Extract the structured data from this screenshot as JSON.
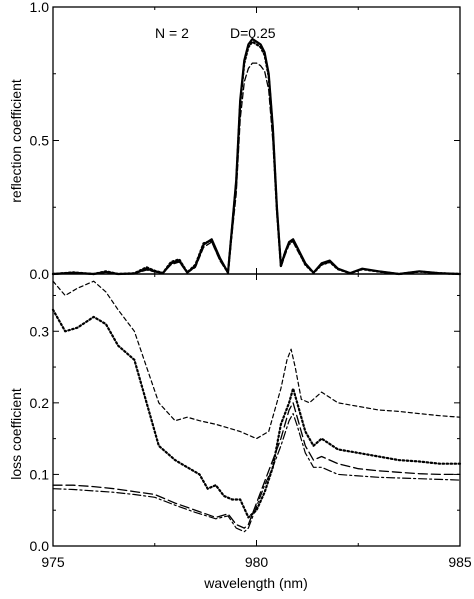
{
  "chart_data": [
    {
      "type": "line",
      "panel": "top",
      "ylabel": "reflection coefficient",
      "xlim": [
        975,
        985
      ],
      "ylim": [
        0,
        1
      ],
      "yticks": [
        0.0,
        0.5,
        1.0
      ],
      "ytick_labels": [
        "0.0",
        "0.5",
        "1.0"
      ],
      "grid": false,
      "annotations": [
        "N = 2",
        "D=0.25"
      ],
      "series": [
        {
          "style": "solid",
          "x": [
            975,
            975.5,
            976,
            976.3,
            976.6,
            977,
            977.3,
            977.5,
            977.7,
            977.9,
            978.1,
            978.3,
            978.5,
            978.7,
            978.9,
            979.1,
            979.3,
            979.5,
            979.6,
            979.7,
            979.8,
            979.9,
            980,
            980.1,
            980.2,
            980.3,
            980.4,
            980.5,
            980.6,
            980.7,
            980.8,
            980.9,
            981,
            981.2,
            981.4,
            981.6,
            981.8,
            982,
            982.3,
            982.6,
            983,
            983.5,
            984,
            984.5,
            985
          ],
          "y": [
            0.0,
            0.005,
            0.0,
            0.008,
            0.0,
            0.002,
            0.02,
            0.01,
            0.003,
            0.04,
            0.05,
            0.005,
            0.03,
            0.11,
            0.13,
            0.06,
            0.005,
            0.35,
            0.65,
            0.8,
            0.86,
            0.88,
            0.87,
            0.86,
            0.83,
            0.75,
            0.55,
            0.25,
            0.03,
            0.08,
            0.12,
            0.13,
            0.1,
            0.04,
            0.005,
            0.04,
            0.05,
            0.02,
            0.003,
            0.02,
            0.01,
            0.0,
            0.01,
            0.003,
            0.0
          ]
        },
        {
          "style": "dotted",
          "x": [
            975,
            975.5,
            976,
            976.3,
            976.6,
            977,
            977.3,
            977.5,
            977.7,
            977.9,
            978.1,
            978.3,
            978.5,
            978.7,
            978.9,
            979.1,
            979.3,
            979.5,
            979.6,
            979.7,
            979.8,
            979.9,
            980,
            980.1,
            980.2,
            980.3,
            980.4,
            980.5,
            980.6,
            980.7,
            980.8,
            980.9,
            981,
            981.2,
            981.4,
            981.6,
            981.8,
            982,
            982.3,
            982.6,
            983,
            983.5,
            984,
            984.5,
            985
          ],
          "y": [
            0.0,
            0.006,
            0.0,
            0.01,
            0.0,
            0.003,
            0.025,
            0.012,
            0.004,
            0.045,
            0.055,
            0.006,
            0.035,
            0.115,
            0.125,
            0.055,
            0.005,
            0.34,
            0.64,
            0.79,
            0.85,
            0.87,
            0.86,
            0.85,
            0.82,
            0.74,
            0.54,
            0.24,
            0.03,
            0.08,
            0.115,
            0.125,
            0.095,
            0.035,
            0.004,
            0.035,
            0.045,
            0.018,
            0.003,
            0.018,
            0.009,
            0.0,
            0.009,
            0.003,
            0.0
          ]
        },
        {
          "style": "dashed",
          "x": [
            975,
            975.5,
            976,
            976.3,
            976.6,
            977,
            977.3,
            977.5,
            977.7,
            977.9,
            978.1,
            978.3,
            978.5,
            978.7,
            978.9,
            979.1,
            979.3,
            979.5,
            979.6,
            979.7,
            979.8,
            979.9,
            980,
            980.1,
            980.2,
            980.3,
            980.4,
            980.5,
            980.6,
            980.7,
            980.8,
            980.9,
            981,
            981.2,
            981.4,
            981.6,
            981.8,
            982,
            982.3,
            982.6,
            983,
            983.5,
            984,
            984.5,
            985
          ],
          "y": [
            0.0,
            0.004,
            0.0,
            0.006,
            0.0,
            0.002,
            0.015,
            0.008,
            0.003,
            0.035,
            0.045,
            0.004,
            0.025,
            0.1,
            0.12,
            0.05,
            0.004,
            0.3,
            0.58,
            0.72,
            0.77,
            0.79,
            0.79,
            0.78,
            0.76,
            0.69,
            0.5,
            0.22,
            0.025,
            0.07,
            0.11,
            0.12,
            0.09,
            0.035,
            0.004,
            0.035,
            0.045,
            0.018,
            0.003,
            0.018,
            0.009,
            0.0,
            0.009,
            0.003,
            0.0
          ]
        }
      ]
    },
    {
      "type": "line",
      "panel": "bottom",
      "xlabel": "wavelength (nm)",
      "ylabel": "loss coefficient",
      "xlim": [
        975,
        985
      ],
      "ylim": [
        0,
        0.38
      ],
      "xticks": [
        975,
        980,
        985
      ],
      "xtick_labels": [
        "975",
        "980",
        "985"
      ],
      "yticks": [
        0.0,
        0.1,
        0.2,
        0.3
      ],
      "ytick_labels": [
        "0.0",
        "0.1",
        "0.2",
        "0.3"
      ],
      "grid": false,
      "series": [
        {
          "style": "short-dash",
          "x": [
            975,
            975.3,
            975.6,
            976,
            976.3,
            976.6,
            977,
            977.3,
            977.6,
            978,
            978.3,
            978.6,
            979,
            979.3,
            979.6,
            980,
            980.3,
            980.6,
            980.75,
            980.85,
            980.95,
            981.1,
            981.3,
            981.6,
            982,
            982.5,
            983,
            983.5,
            984,
            984.5,
            985
          ],
          "y": [
            0.37,
            0.35,
            0.36,
            0.37,
            0.355,
            0.33,
            0.3,
            0.25,
            0.2,
            0.175,
            0.18,
            0.175,
            0.17,
            0.165,
            0.16,
            0.15,
            0.16,
            0.22,
            0.26,
            0.275,
            0.25,
            0.205,
            0.2,
            0.215,
            0.2,
            0.195,
            0.19,
            0.188,
            0.185,
            0.182,
            0.18
          ]
        },
        {
          "style": "dotted",
          "x": [
            975,
            975.3,
            975.6,
            976,
            976.3,
            976.6,
            977,
            977.3,
            977.6,
            978,
            978.3,
            978.6,
            978.8,
            979,
            979.2,
            979.4,
            979.6,
            979.8,
            980,
            980.2,
            980.4,
            980.6,
            980.8,
            980.9,
            981,
            981.2,
            981.4,
            981.6,
            982,
            982.5,
            983,
            983.5,
            984,
            984.5,
            985
          ],
          "y": [
            0.33,
            0.3,
            0.305,
            0.32,
            0.31,
            0.28,
            0.26,
            0.2,
            0.14,
            0.12,
            0.11,
            0.1,
            0.08,
            0.085,
            0.07,
            0.065,
            0.065,
            0.04,
            0.05,
            0.075,
            0.11,
            0.17,
            0.2,
            0.22,
            0.2,
            0.16,
            0.14,
            0.15,
            0.135,
            0.13,
            0.125,
            0.12,
            0.118,
            0.115,
            0.115
          ]
        },
        {
          "style": "long-dash",
          "x": [
            975,
            975.5,
            976,
            976.5,
            977,
            977.5,
            978,
            978.5,
            979,
            979.3,
            979.5,
            979.7,
            979.8,
            980,
            980.2,
            980.4,
            980.6,
            980.8,
            980.9,
            981,
            981.2,
            981.4,
            981.6,
            982,
            982.5,
            983,
            983.5,
            984,
            984.5,
            985
          ],
          "y": [
            0.085,
            0.085,
            0.083,
            0.08,
            0.076,
            0.072,
            0.06,
            0.05,
            0.04,
            0.045,
            0.03,
            0.025,
            0.03,
            0.06,
            0.09,
            0.12,
            0.15,
            0.19,
            0.2,
            0.18,
            0.14,
            0.12,
            0.125,
            0.115,
            0.108,
            0.105,
            0.103,
            0.101,
            0.1,
            0.1
          ]
        },
        {
          "style": "dash-dot",
          "x": [
            975,
            975.5,
            976,
            976.5,
            977,
            977.5,
            978,
            978.5,
            979,
            979.3,
            979.5,
            979.7,
            979.8,
            980,
            980.2,
            980.4,
            980.6,
            980.8,
            980.9,
            981,
            981.2,
            981.4,
            981.6,
            982,
            982.5,
            983,
            983.5,
            984,
            984.5,
            985
          ],
          "y": [
            0.08,
            0.079,
            0.077,
            0.075,
            0.072,
            0.068,
            0.057,
            0.047,
            0.038,
            0.042,
            0.025,
            0.02,
            0.025,
            0.055,
            0.085,
            0.11,
            0.14,
            0.175,
            0.185,
            0.168,
            0.13,
            0.11,
            0.11,
            0.1,
            0.098,
            0.096,
            0.095,
            0.094,
            0.093,
            0.092
          ]
        }
      ]
    }
  ]
}
